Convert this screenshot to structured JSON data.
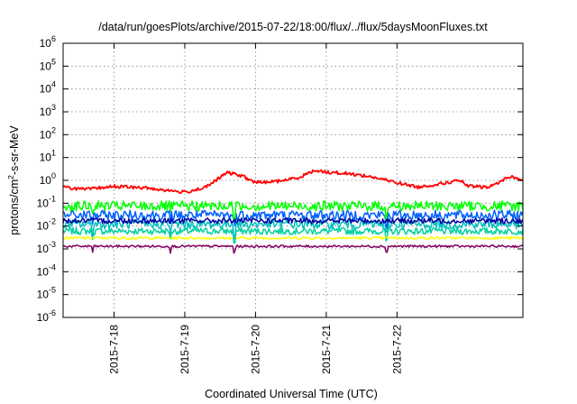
{
  "chart_data": {
    "type": "line",
    "title": "/data/run/goesPlots/archive/2015-07-22/18:00/flux/../flux/5daysMoonFluxes.txt",
    "xlabel": "Coordinated Universal Time (UTC)",
    "ylabel": "protons/cm2-s-sr-MeV",
    "ylabel_parts": {
      "before": "protons/cm",
      "sup": "2",
      "after": "-s-sr-MeV"
    },
    "yscale": "log",
    "ylim": [
      1e-06,
      1000000.0
    ],
    "y_tick_exponents": [
      -6,
      -5,
      -4,
      -3,
      -2,
      -1,
      0,
      1,
      2,
      3,
      4,
      5,
      6
    ],
    "y_tick_base": "10",
    "xlim": [
      -0.72,
      5.78
    ],
    "x_tick_labels": [
      "2015-7-18",
      "2015-7-19",
      "2015-7-20",
      "2015-7-21",
      "2015-7-22"
    ],
    "x_tick_positions_days": [
      0,
      1,
      2,
      3,
      4
    ],
    "grid": true,
    "legend": "none",
    "series_shape": [
      {
        "x": -0.72,
        "y": 0.5
      },
      {
        "x": -0.4,
        "y": 0.4
      },
      {
        "x": 0.0,
        "y": 0.55
      },
      {
        "x": 0.5,
        "y": 0.45
      },
      {
        "x": 1.0,
        "y": 0.3
      },
      {
        "x": 1.3,
        "y": 0.5
      },
      {
        "x": 1.6,
        "y": 2.2
      },
      {
        "x": 1.8,
        "y": 1.6
      },
      {
        "x": 2.0,
        "y": 0.8
      },
      {
        "x": 2.3,
        "y": 0.9
      },
      {
        "x": 2.6,
        "y": 1.3
      },
      {
        "x": 2.85,
        "y": 2.8
      },
      {
        "x": 3.0,
        "y": 2.3
      },
      {
        "x": 3.3,
        "y": 2.0
      },
      {
        "x": 3.6,
        "y": 1.5
      },
      {
        "x": 4.0,
        "y": 0.8
      },
      {
        "x": 4.3,
        "y": 0.5
      },
      {
        "x": 4.6,
        "y": 0.7
      },
      {
        "x": 4.9,
        "y": 1.0
      },
      {
        "x": 5.0,
        "y": 0.55
      },
      {
        "x": 5.3,
        "y": 0.5
      },
      {
        "x": 5.6,
        "y": 1.5
      },
      {
        "x": 5.78,
        "y": 1.0
      }
    ],
    "series": [
      {
        "color": "#ff0000",
        "level": null,
        "noise": 0.07,
        "dips": false
      },
      {
        "color": "#00ff00",
        "level": 0.075,
        "noise": 0.22,
        "dips": true
      },
      {
        "color": "#0060ff",
        "level": 0.03,
        "noise": 0.22,
        "dips": true
      },
      {
        "color": "#00c0c0",
        "level": 0.012,
        "noise": 0.2,
        "dips": true
      },
      {
        "color": "#0000a0",
        "level": 0.017,
        "noise": 0.12,
        "dips": false
      },
      {
        "color": "#00d0a0",
        "level": 0.006,
        "noise": 0.15,
        "dips": true
      },
      {
        "color": "#ffff00",
        "level": 0.003,
        "noise": 0.06,
        "dips": false
      },
      {
        "color": "#800060",
        "level": 0.0013,
        "noise": 0.05,
        "dips": true
      }
    ],
    "dip_days": [
      -0.3,
      0.8,
      1.7,
      3.85
    ],
    "seed": 7
  }
}
